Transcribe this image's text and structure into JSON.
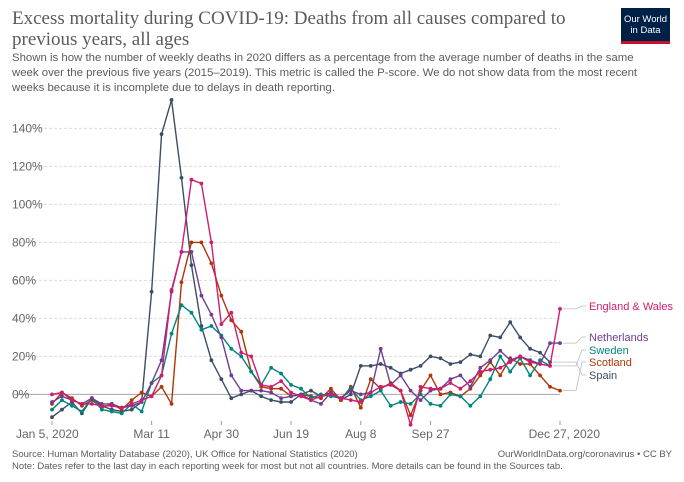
{
  "header": {
    "title": "Excess mortality during COVID-19: Deaths from all causes compared to previous years, all ages",
    "subtitle": "Shown is how the number of weekly deaths in 2020 differs as a percentage from the average number of deaths in the same week over the previous five years (2015–2019). This metric is called the P-score. We do not show data from the most recent weeks because it is incomplete due to delays in death reporting.",
    "logo_line1": "Our World",
    "logo_line2": "in Data"
  },
  "footer": {
    "source": "Source: Human Mortality Database (2020), UK Office for National Statistics (2020)",
    "url": "OurWorldInData.org/coronavirus • CC BY",
    "note": "Note: Dates refer to the last day in each reporting week for most but not all countries. More details can be found in the Sources tab."
  },
  "chart_data": {
    "type": "line",
    "x_tick_labels": [
      "Jan 5, 2020",
      "Mar 11",
      "Apr 30",
      "Jun 19",
      "Aug 8",
      "Sep 27",
      "Dec 27, 2020"
    ],
    "x_tick_weeks": [
      1,
      11,
      18,
      25,
      32,
      39,
      52
    ],
    "y_ticks": [
      0,
      20,
      40,
      60,
      80,
      100,
      120,
      140
    ],
    "y_tick_labels": [
      "0%",
      "20%",
      "40%",
      "60%",
      "80%",
      "100%",
      "120%",
      "140%"
    ],
    "ylim": [
      -14,
      156
    ],
    "xlim": [
      1,
      52
    ],
    "grid": true,
    "legend": "right end of lines",
    "series": [
      {
        "name": "Spain",
        "color": "#3c4e66",
        "x": [
          1,
          2,
          3,
          4,
          5,
          6,
          7,
          8,
          9,
          10,
          11,
          12,
          13,
          14,
          15,
          16,
          17,
          18,
          19,
          20,
          21,
          22,
          23,
          24,
          25,
          26,
          27,
          28,
          29,
          30,
          31,
          32,
          33,
          34,
          35,
          36,
          37,
          38,
          39,
          40,
          41,
          42,
          43,
          44,
          45,
          46,
          47,
          48,
          49,
          50,
          51
        ],
        "values": [
          -12,
          -8,
          -4,
          -10,
          -2,
          -6,
          -8,
          -9,
          -8,
          -4,
          54,
          137,
          155,
          114,
          68,
          36,
          18,
          8,
          -2,
          0,
          2,
          -1,
          -3,
          -4,
          -4,
          0,
          2,
          -1,
          1,
          -3,
          0,
          15,
          15,
          16,
          14,
          11,
          13,
          15,
          20,
          19,
          16,
          17,
          21,
          20,
          31,
          30,
          38,
          30,
          24,
          22,
          17
        ]
      },
      {
        "name": "Scotland",
        "color": "#b13507",
        "x": [
          1,
          2,
          3,
          4,
          5,
          6,
          7,
          8,
          9,
          10,
          11,
          12,
          13,
          14,
          15,
          16,
          17,
          18,
          19,
          20,
          21,
          22,
          23,
          24,
          25,
          26,
          27,
          28,
          29,
          30,
          31,
          32,
          33,
          34,
          35,
          36,
          37,
          38,
          39,
          40,
          41,
          42,
          43,
          44,
          45,
          46,
          47,
          48,
          49,
          50,
          51,
          52
        ],
        "values": [
          -5,
          1,
          -2,
          -6,
          -3,
          -7,
          -5,
          -8,
          -3,
          1,
          -1,
          4,
          -5,
          59,
          80,
          80,
          69,
          52,
          39,
          33,
          12,
          4,
          3,
          3,
          -1,
          0,
          -1,
          -2,
          3,
          -3,
          4,
          -7,
          8,
          3,
          6,
          2,
          -11,
          2,
          10,
          0,
          1,
          -1,
          3,
          10,
          17,
          10,
          19,
          16,
          16,
          10,
          4,
          2
        ]
      },
      {
        "name": "Sweden",
        "color": "#00847e",
        "x": [
          1,
          2,
          3,
          4,
          5,
          6,
          7,
          8,
          9,
          10,
          11,
          12,
          13,
          14,
          15,
          16,
          17,
          18,
          19,
          20,
          21,
          22,
          23,
          24,
          25,
          26,
          27,
          28,
          29,
          30,
          31,
          32,
          33,
          34,
          35,
          36,
          37,
          38,
          39,
          40,
          41,
          42,
          43,
          44,
          45,
          46,
          47,
          48,
          49,
          50,
          51
        ],
        "values": [
          -8,
          -3,
          -6,
          -9,
          -2,
          -8,
          -9,
          -10,
          -5,
          -9,
          6,
          10,
          32,
          47,
          43,
          34,
          36,
          31,
          24,
          20,
          12,
          5,
          14,
          11,
          5,
          3,
          -2,
          0,
          -1,
          -2,
          3,
          -3,
          -1,
          2,
          -6,
          -4,
          -5,
          0,
          -5,
          -6,
          0,
          -1,
          -6,
          -1,
          8,
          20,
          12,
          19,
          10,
          18,
          15
        ]
      },
      {
        "name": "Netherlands",
        "color": "#6d3e91",
        "x": [
          1,
          2,
          3,
          4,
          5,
          6,
          7,
          8,
          9,
          10,
          11,
          12,
          13,
          14,
          15,
          16,
          17,
          18,
          19,
          20,
          21,
          22,
          23,
          24,
          25,
          26,
          27,
          28,
          29,
          30,
          31,
          32,
          33,
          34,
          35,
          36,
          37,
          38,
          39,
          40,
          41,
          42,
          43,
          44,
          45,
          46,
          47,
          48,
          49,
          50,
          51,
          52
        ],
        "values": [
          -4,
          -1,
          -3,
          -5,
          -2,
          -5,
          -5,
          -7,
          -6,
          -4,
          6,
          18,
          54,
          75,
          75,
          52,
          42,
          30,
          10,
          2,
          2,
          2,
          1,
          -2,
          -1,
          0,
          -3,
          -5,
          1,
          -2,
          2,
          0,
          1,
          24,
          5,
          10,
          2,
          -3,
          2,
          3,
          8,
          10,
          4,
          14,
          18,
          23,
          18,
          20,
          18,
          16,
          27,
          27
        ]
      },
      {
        "name": "England & Wales",
        "color": "#ce1d6f",
        "x": [
          1,
          2,
          3,
          4,
          5,
          6,
          7,
          8,
          9,
          10,
          11,
          12,
          13,
          14,
          15,
          16,
          17,
          18,
          19,
          20,
          21,
          22,
          23,
          24,
          25,
          26,
          27,
          28,
          29,
          30,
          31,
          32,
          33,
          34,
          35,
          36,
          37,
          38,
          39,
          40,
          41,
          42,
          43,
          44,
          45,
          46,
          47,
          48,
          49,
          50,
          51,
          52
        ],
        "values": [
          0,
          1,
          -3,
          -5,
          -5,
          -6,
          -6,
          -7,
          -5,
          -3,
          -1,
          10,
          55,
          75,
          113,
          111,
          80,
          37,
          43,
          22,
          20,
          5,
          4,
          7,
          1,
          -1,
          -3,
          -1,
          0,
          -2,
          -3,
          -4,
          1,
          4,
          5,
          2,
          -16,
          4,
          3,
          3,
          6,
          3,
          7,
          12,
          13,
          14,
          17,
          20,
          17,
          16,
          15,
          45
        ]
      }
    ]
  }
}
